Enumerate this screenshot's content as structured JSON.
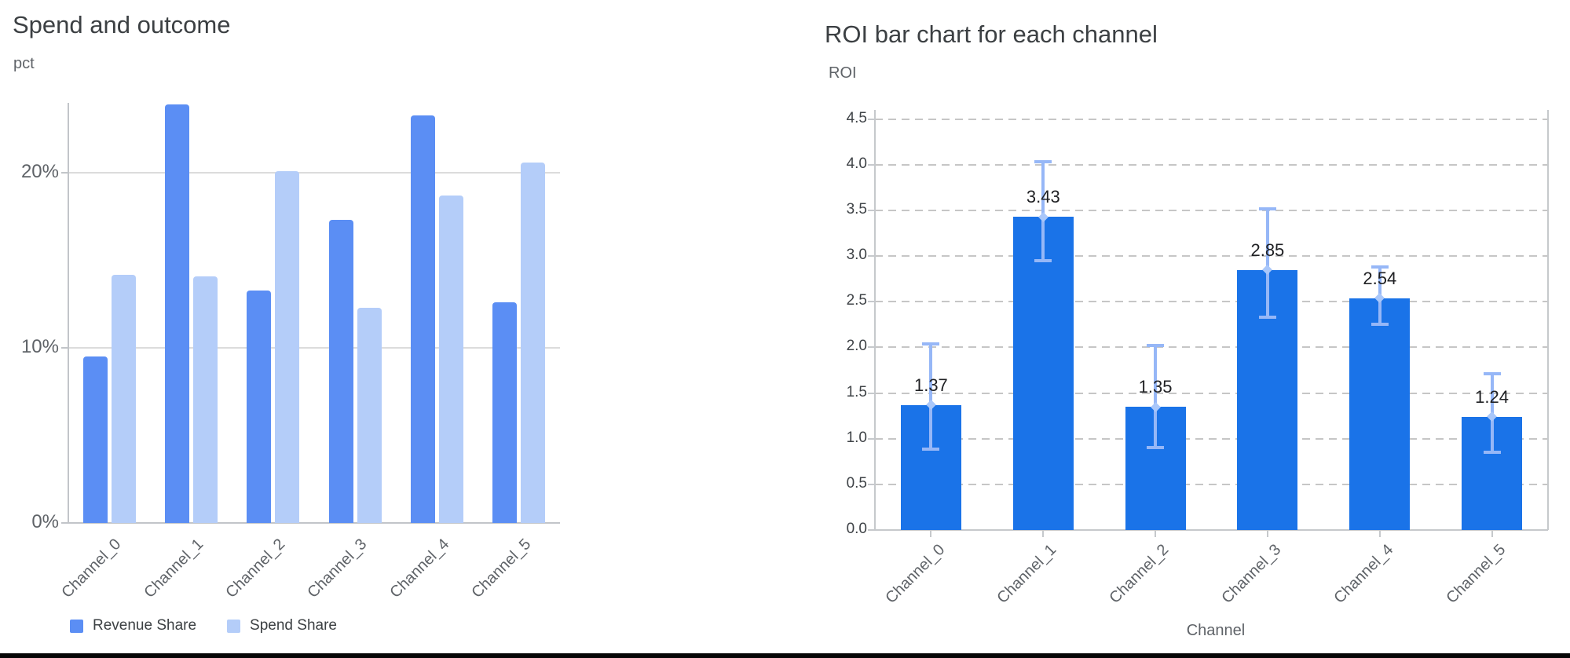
{
  "page": {
    "background": "#ffffff"
  },
  "chart_data": [
    {
      "id": "spend_and_outcome",
      "type": "bar",
      "title": "Spend and outcome",
      "ylabel": "pct",
      "xlabel": "",
      "categories": [
        "Channel_0",
        "Channel_1",
        "Channel_2",
        "Channel_3",
        "Channel_4",
        "Channel_5"
      ],
      "series": [
        {
          "name": "Revenue Share",
          "color": "#5b8ef4",
          "values": [
            9.5,
            23.9,
            13.3,
            17.3,
            23.3,
            12.6
          ]
        },
        {
          "name": "Spend Share",
          "color": "#b4cdf9",
          "values": [
            14.2,
            14.1,
            20.1,
            12.3,
            18.7,
            20.6
          ]
        }
      ],
      "y_ticks": {
        "values": [
          0,
          10,
          20
        ],
        "labels": [
          "0%",
          "10%",
          "20%"
        ]
      },
      "ylim": [
        0,
        24
      ],
      "grid": "solid-horizontal",
      "legend_position": "bottom-left"
    },
    {
      "id": "roi_by_channel",
      "type": "bar",
      "title": "ROI bar chart for each channel",
      "ylabel": "ROI",
      "xlabel": "Channel",
      "categories": [
        "Channel_0",
        "Channel_1",
        "Channel_2",
        "Channel_3",
        "Channel_4",
        "Channel_5"
      ],
      "values": [
        1.37,
        3.43,
        1.35,
        2.85,
        2.54,
        1.24
      ],
      "value_labels": [
        "1.37",
        "3.43",
        "1.35",
        "2.85",
        "2.54",
        "1.24"
      ],
      "error_low": [
        0.89,
        2.95,
        0.9,
        2.33,
        2.25,
        0.85
      ],
      "error_high": [
        2.04,
        4.03,
        2.02,
        3.52,
        2.88,
        1.71
      ],
      "bar_color": "#1a73e8",
      "error_color": "#96b7f7",
      "error_marker_color": "#a9c7fa",
      "y_ticks": {
        "values": [
          0,
          0.5,
          1,
          1.5,
          2,
          2.5,
          3,
          3.5,
          4,
          4.5
        ],
        "labels": [
          "0.0",
          "0.5",
          "1.0",
          "1.5",
          "2.0",
          "2.5",
          "3.0",
          "3.5",
          "4.0",
          "4.5"
        ]
      },
      "ylim": [
        0,
        4.6
      ],
      "grid": "dashed-horizontal",
      "legend_position": "none"
    }
  ]
}
